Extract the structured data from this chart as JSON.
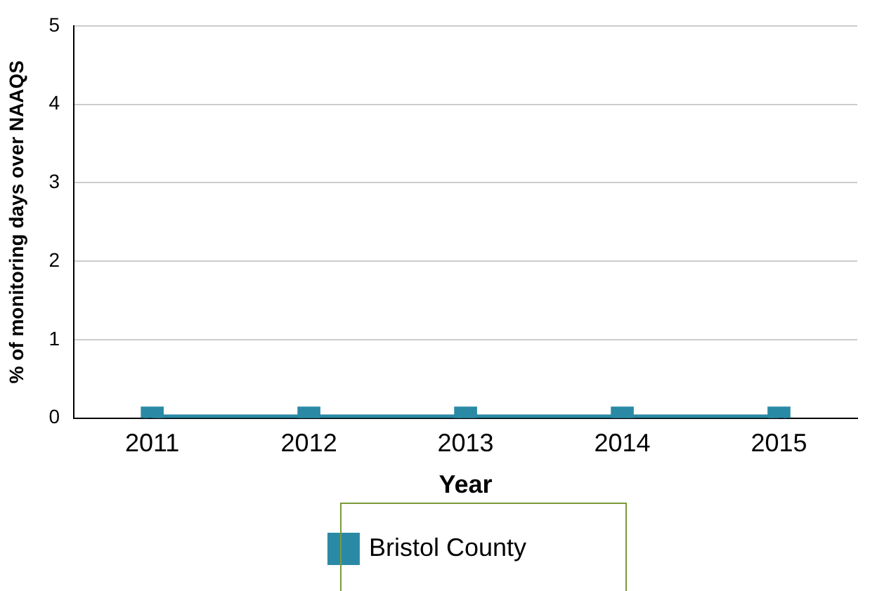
{
  "chart_data": {
    "type": "line",
    "xlabel": "Year",
    "ylabel": "% of monitoring days over NAAQS",
    "categories": [
      "2011",
      "2012",
      "2013",
      "2014",
      "2015"
    ],
    "series": [
      {
        "name": "Bristol County",
        "color": "#2a8aa6",
        "values": [
          0,
          0,
          0,
          0,
          0
        ]
      }
    ],
    "ylim": [
      0,
      5
    ],
    "yticks": [
      0,
      1,
      2,
      3,
      4,
      5
    ],
    "grid": "y",
    "legend": "bottom",
    "marker": "square",
    "line_style": "solid"
  }
}
